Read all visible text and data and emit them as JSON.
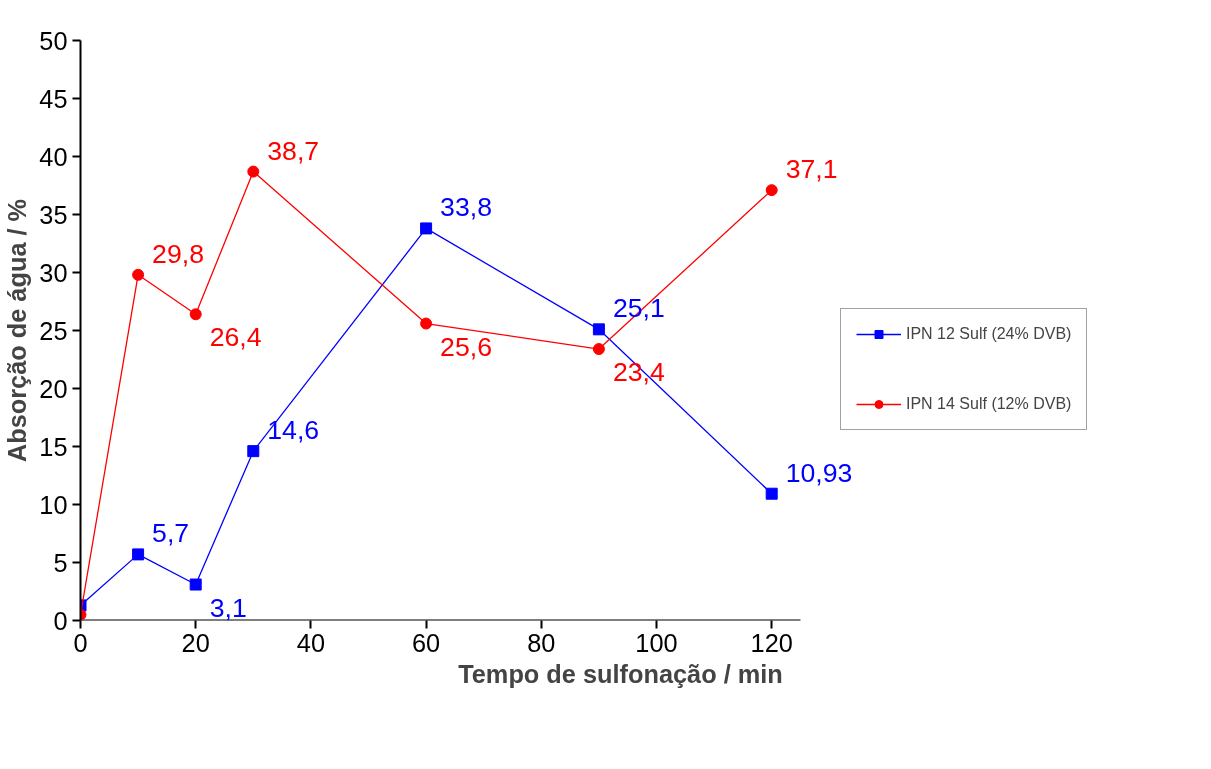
{
  "chart_data": {
    "type": "line",
    "xlabel": "Tempo de sulfonação / min",
    "ylabel": "Absorção de água / %",
    "x": [
      0,
      10,
      20,
      30,
      60,
      90,
      120
    ],
    "series": [
      {
        "name": "IPN 12 Sulf (24% DVB)",
        "color": "#0000ff",
        "marker": "square",
        "values": [
          1.3,
          5.7,
          3.1,
          14.6,
          33.8,
          25.1,
          10.93
        ],
        "value_labels": [
          null,
          "5,7",
          "3,1",
          "14,6",
          "33,8",
          "25,1",
          "10,93"
        ]
      },
      {
        "name": "IPN 14 Sulf (12% DVB)",
        "color": "#ff0000",
        "marker": "circle",
        "values": [
          0.5,
          29.8,
          26.4,
          38.7,
          25.6,
          23.4,
          37.1
        ],
        "value_labels": [
          null,
          "29,8",
          "26,4",
          "38,7",
          "25,6",
          "23,4",
          "37,1"
        ]
      }
    ],
    "xlim": [
      0,
      125
    ],
    "xticks": [
      0,
      20,
      40,
      60,
      80,
      100,
      120
    ],
    "ylim": [
      0,
      50
    ],
    "yticks": [
      0,
      5,
      10,
      15,
      20,
      25,
      30,
      35,
      40,
      45,
      50
    ],
    "grid": false,
    "legend": "right",
    "line_style": "solid"
  }
}
